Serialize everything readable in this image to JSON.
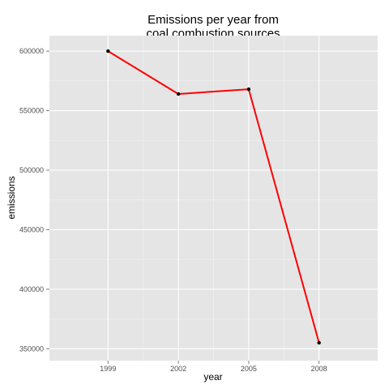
{
  "chart_data": {
    "type": "line",
    "title_lines": [
      "Emissions per year from",
      "coal combustion sources"
    ],
    "xlabel": "year",
    "ylabel": "emissions",
    "x": [
      1999,
      2002,
      2005,
      2008
    ],
    "x_ticks": [
      "1999",
      "2002",
      "2005",
      "2008"
    ],
    "y_ticks": [
      350000,
      400000,
      450000,
      500000,
      550000,
      600000
    ],
    "y_tick_labels": [
      "350000",
      "400000",
      "450000",
      "500000",
      "550000",
      "600000"
    ],
    "ylim": [
      340000,
      613000
    ],
    "series": [
      {
        "values": [
          600000,
          564000,
          568000,
          355000
        ],
        "color": "#ff0000"
      }
    ],
    "point_color": "#000000",
    "panel_background": "#e5e5e5",
    "grid": true,
    "grid_color": "#ffffff"
  }
}
